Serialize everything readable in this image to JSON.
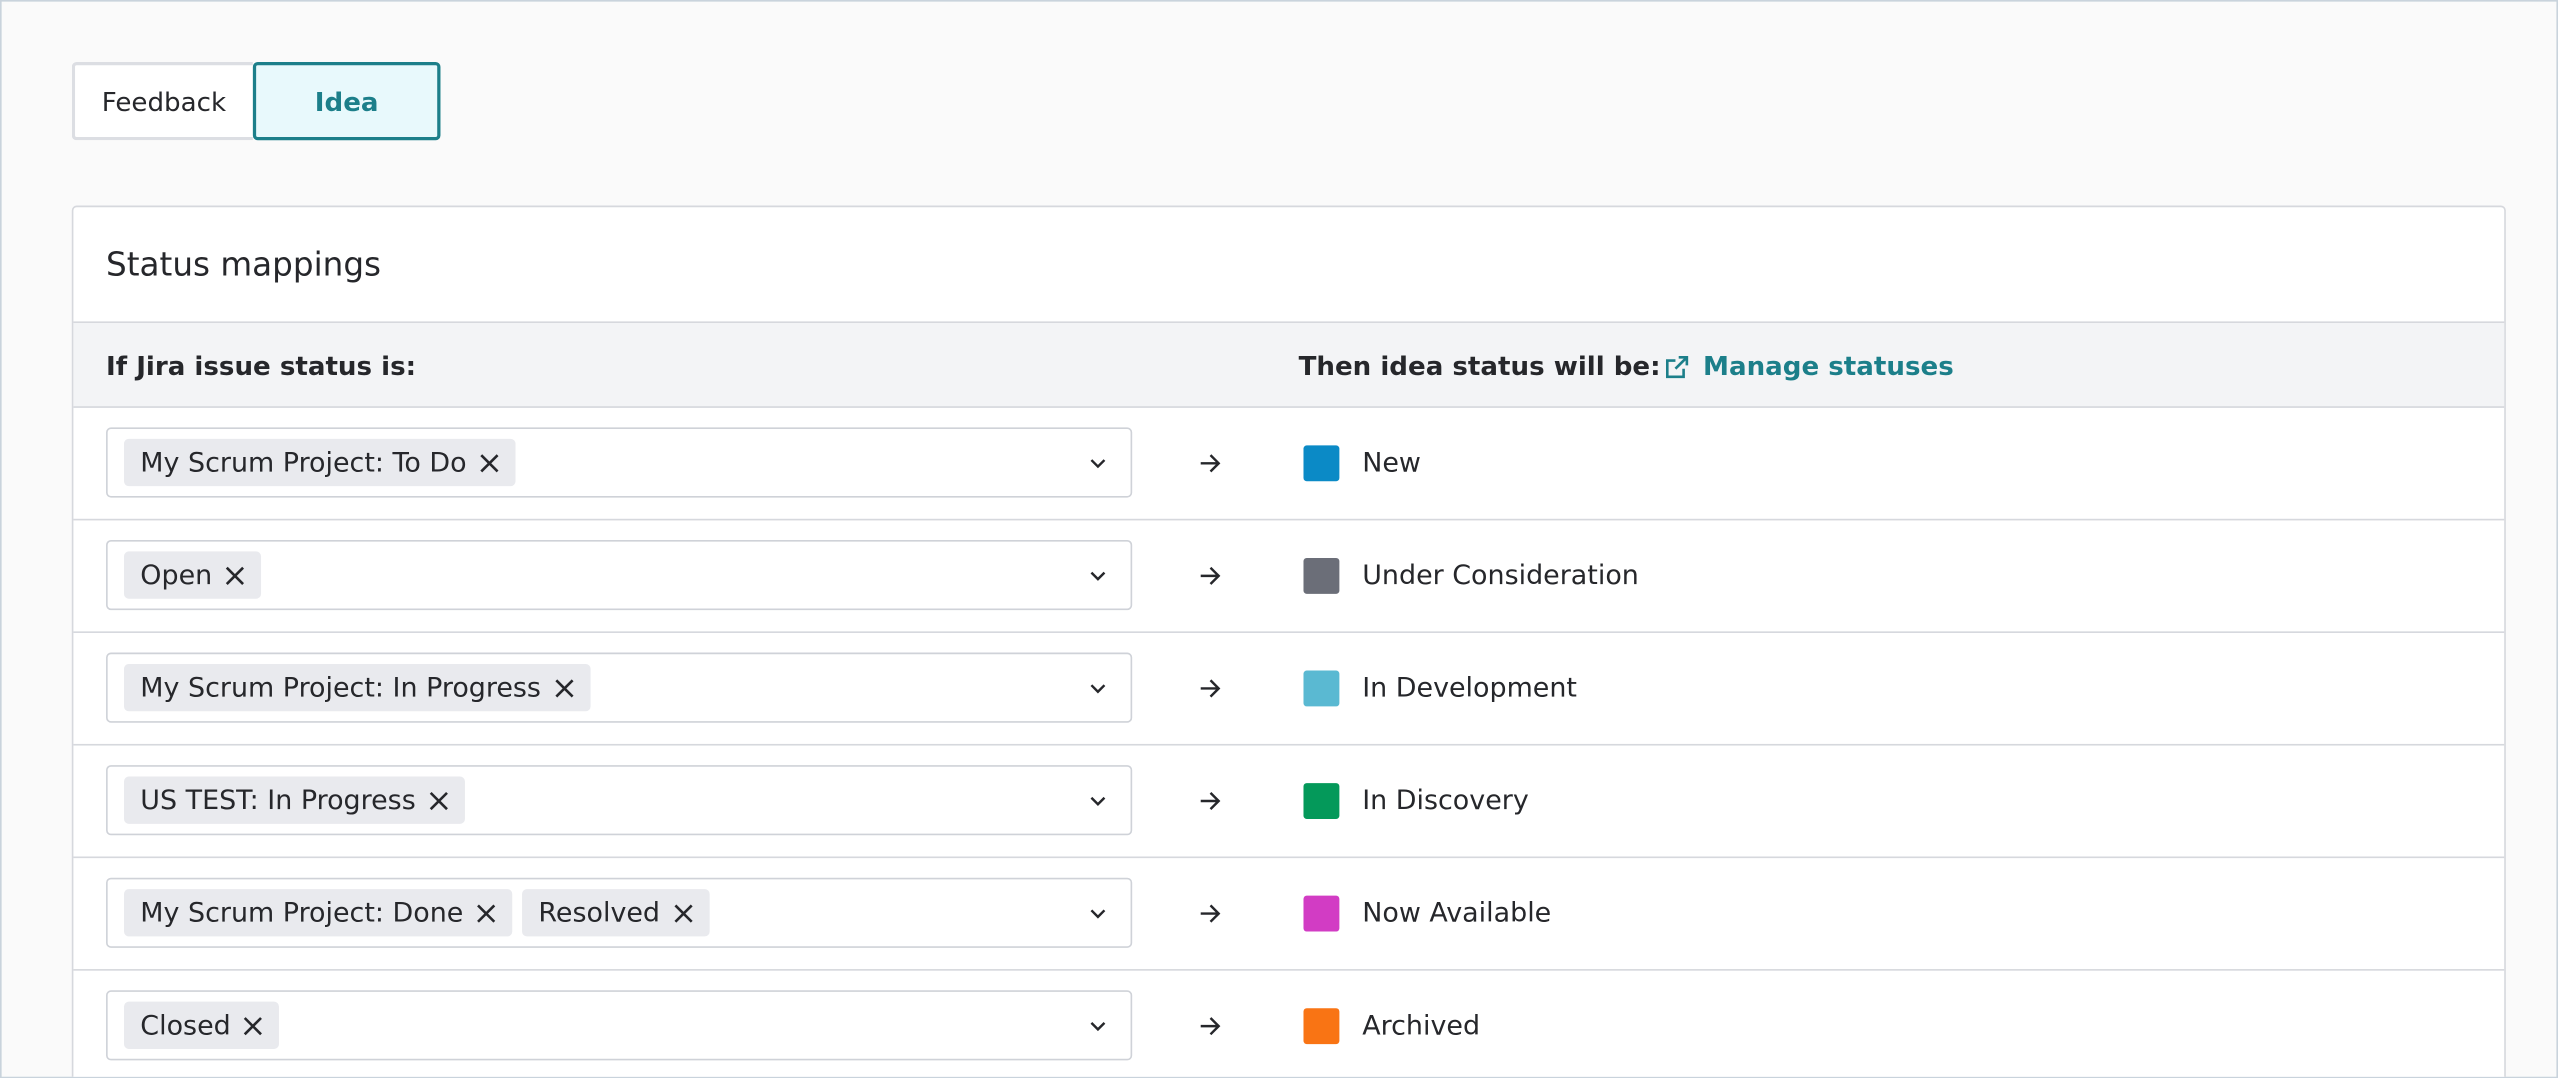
{
  "tabs": [
    {
      "label": "Feedback",
      "selected": false
    },
    {
      "label": "Idea",
      "selected": true
    }
  ],
  "card": {
    "title": "Status mappings",
    "header": {
      "left": "If Jira issue status is:",
      "right": "Then idea status will be:",
      "link": "Manage statuses"
    },
    "rows": [
      {
        "chips": [
          "My Scrum Project: To Do"
        ],
        "status": "New",
        "color": "#0b8ac6"
      },
      {
        "chips": [
          "Open"
        ],
        "status": "Under Consideration",
        "color": "#6b6e78"
      },
      {
        "chips": [
          "My Scrum Project: In Progress"
        ],
        "status": "In Development",
        "color": "#5ab9d2"
      },
      {
        "chips": [
          "US TEST: In Progress"
        ],
        "status": "In Discovery",
        "color": "#04995a"
      },
      {
        "chips": [
          "My Scrum Project: Done",
          "Resolved"
        ],
        "status": "Now Available",
        "color": "#d23cc4"
      },
      {
        "chips": [
          "Closed"
        ],
        "status": "Archived",
        "color": "#f97414"
      }
    ]
  }
}
